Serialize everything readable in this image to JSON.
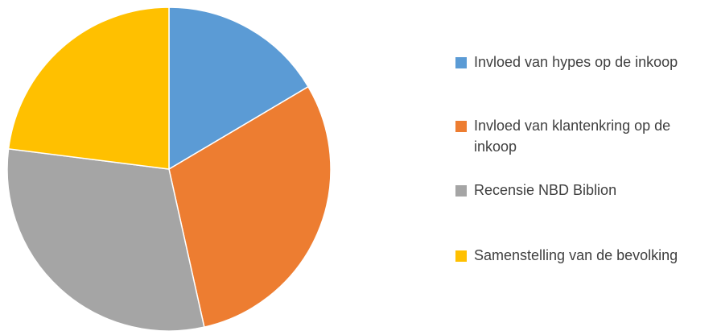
{
  "chart_data": {
    "type": "pie",
    "title": "",
    "legend_position": "right",
    "start_angle": "top, clockwise",
    "slices": [
      {
        "name": "Invloed van hypes op de inkoop",
        "value": 16.5,
        "color": "#5B9BD5"
      },
      {
        "name": "Invloed van klantenkring op de inkoop",
        "value": 30.0,
        "color": "#ED7D31"
      },
      {
        "name": "Recensie NBD Biblion",
        "value": 30.5,
        "color": "#A5A5A5"
      },
      {
        "name": "Samenstelling van de bevolking",
        "value": 23.0,
        "color": "#FFC000"
      }
    ]
  }
}
